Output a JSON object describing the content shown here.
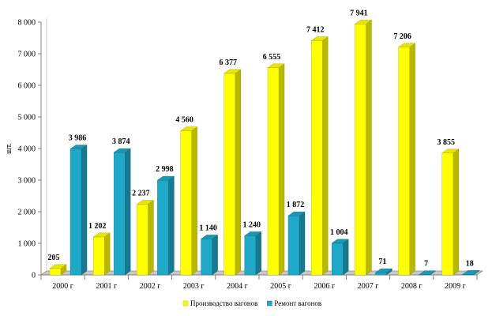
{
  "chart_data": {
    "type": "bar",
    "ylabel": "шт.",
    "ylim": [
      0,
      8000
    ],
    "yticks": [
      "0",
      "1 000",
      "2 000",
      "3 000",
      "4 000",
      "5 000",
      "6 000",
      "7 000",
      "8 000"
    ],
    "ytick_values": [
      0,
      1000,
      2000,
      3000,
      4000,
      5000,
      6000,
      7000,
      8000
    ],
    "categories": [
      "2000 г",
      "2001 г",
      "2002 г",
      "2003 г",
      "2004 г",
      "2005 г",
      "2006 г",
      "2007 г",
      "2008 г",
      "2009 г"
    ],
    "series": [
      {
        "name": "Производство вагонов",
        "color": "#ffff00",
        "values": [
          205,
          1202,
          2237,
          4560,
          6377,
          6555,
          7412,
          7941,
          7206,
          3855
        ],
        "labels": [
          "205",
          "1 202",
          "2 237",
          "4 560",
          "6 377",
          "6 555",
          "7 412",
          "7 941",
          "7 206",
          "3 855"
        ]
      },
      {
        "name": "Ремонт вагонов",
        "color": "#1fa8c8",
        "values": [
          3986,
          3874,
          2998,
          1140,
          1240,
          1872,
          1004,
          71,
          7,
          18
        ],
        "labels": [
          "3 986",
          "3 874",
          "2 998",
          "1 140",
          "1 240",
          "1 872",
          "1 004",
          "71",
          "7",
          "18"
        ]
      }
    ],
    "grid": false,
    "legend_position": "bottom"
  }
}
